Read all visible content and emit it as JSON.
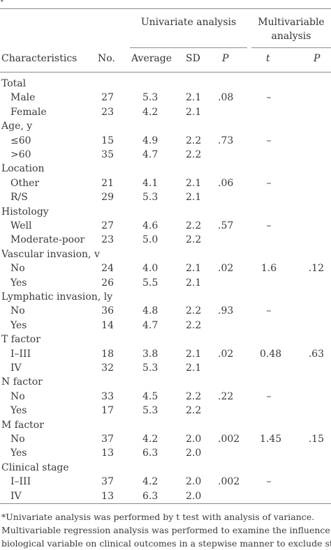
{
  "header": {
    "top_fragment": "P",
    "univariate": "Univariate analysis",
    "multivariable": "Multivariable analysis",
    "columns": {
      "characteristics": "Characteristics",
      "no": "No.",
      "average": "Average",
      "sd": "SD",
      "p": "P",
      "t": "t",
      "mp": "P"
    }
  },
  "rows": [
    {
      "kind": "group",
      "label": "Total"
    },
    {
      "kind": "item",
      "label": "Male",
      "no": "27",
      "avg": "5.3",
      "sd": "2.1",
      "p": ".08",
      "t": "–",
      "mp": ""
    },
    {
      "kind": "item",
      "label": "Female",
      "no": "23",
      "avg": "4.2",
      "sd": "2.1",
      "p": "",
      "t": "",
      "mp": ""
    },
    {
      "kind": "group",
      "label": "Age, y"
    },
    {
      "kind": "item",
      "label": "≤60",
      "no": "15",
      "avg": "4.9",
      "sd": "2.2",
      "p": ".73",
      "t": "–",
      "mp": ""
    },
    {
      "kind": "item",
      "label": ">60",
      "no": "35",
      "avg": "4.7",
      "sd": "2.2",
      "p": "",
      "t": "",
      "mp": ""
    },
    {
      "kind": "group",
      "label": "Location"
    },
    {
      "kind": "item",
      "label": "Other",
      "no": "21",
      "avg": "4.1",
      "sd": "2.1",
      "p": ".06",
      "t": "–",
      "mp": ""
    },
    {
      "kind": "item",
      "label": "R/S",
      "no": "29",
      "avg": "5.3",
      "sd": "2.1",
      "p": "",
      "t": "",
      "mp": ""
    },
    {
      "kind": "group",
      "label": "Histology"
    },
    {
      "kind": "item",
      "label": "Well",
      "no": "27",
      "avg": "4.6",
      "sd": "2.2",
      "p": ".57",
      "t": "–",
      "mp": ""
    },
    {
      "kind": "item",
      "label": "Moderate-poor",
      "no": "23",
      "avg": "5.0",
      "sd": "2.2",
      "p": "",
      "t": "",
      "mp": ""
    },
    {
      "kind": "group",
      "label": "Vascular invasion, v"
    },
    {
      "kind": "item",
      "label": "No",
      "no": "24",
      "avg": "4.0",
      "sd": "2.1",
      "p": ".02",
      "t": "1.6",
      "mp": ".12"
    },
    {
      "kind": "item",
      "label": "Yes",
      "no": "26",
      "avg": "5.5",
      "sd": "2.1",
      "p": "",
      "t": "",
      "mp": ""
    },
    {
      "kind": "group",
      "label": "Lymphatic invasion, ly"
    },
    {
      "kind": "item",
      "label": "No",
      "no": "36",
      "avg": "4.8",
      "sd": "2.2",
      "p": ".93",
      "t": "–",
      "mp": ""
    },
    {
      "kind": "item",
      "label": "Yes",
      "no": "14",
      "avg": "4.7",
      "sd": "2.2",
      "p": "",
      "t": "",
      "mp": ""
    },
    {
      "kind": "group",
      "label": "T factor"
    },
    {
      "kind": "item",
      "label": "I–III",
      "no": "18",
      "avg": "3.8",
      "sd": "2.1",
      "p": ".02",
      "t": "0.48",
      "mp": ".63"
    },
    {
      "kind": "item",
      "label": "IV",
      "no": "32",
      "avg": "5.3",
      "sd": "2.1",
      "p": "",
      "t": "",
      "mp": ""
    },
    {
      "kind": "group",
      "label": "N factor"
    },
    {
      "kind": "item",
      "label": "No",
      "no": "33",
      "avg": "4.5",
      "sd": "2.2",
      "p": ".22",
      "t": "–",
      "mp": ""
    },
    {
      "kind": "item",
      "label": "Yes",
      "no": "17",
      "avg": "5.3",
      "sd": "2.2",
      "p": "",
      "t": "",
      "mp": ""
    },
    {
      "kind": "group",
      "label": "M factor"
    },
    {
      "kind": "item",
      "label": "No",
      "no": "37",
      "avg": "4.2",
      "sd": "2.0",
      "p": ".002",
      "t": "1.45",
      "mp": ".15"
    },
    {
      "kind": "item",
      "label": "Yes",
      "no": "13",
      "avg": "6.3",
      "sd": "2.0",
      "p": "",
      "t": "",
      "mp": ""
    },
    {
      "kind": "group",
      "label": "Clinical stage"
    },
    {
      "kind": "item",
      "label": "I–III",
      "no": "37",
      "avg": "4.2",
      "sd": "2.0",
      "p": ".002",
      "t": "–",
      "mp": ""
    },
    {
      "kind": "item",
      "label": "IV",
      "no": "13",
      "avg": "6.3",
      "sd": "2.0",
      "p": "",
      "t": "",
      "mp": ""
    }
  ],
  "footnote": {
    "line1": "*Univariate analysis was performed by t test with analysis of variance.",
    "line2": "Multivariable regression analysis was performed to examine the influence of each",
    "line3": "biological variable on clinical outcomes in a stepwise manner to exclude statistical"
  }
}
